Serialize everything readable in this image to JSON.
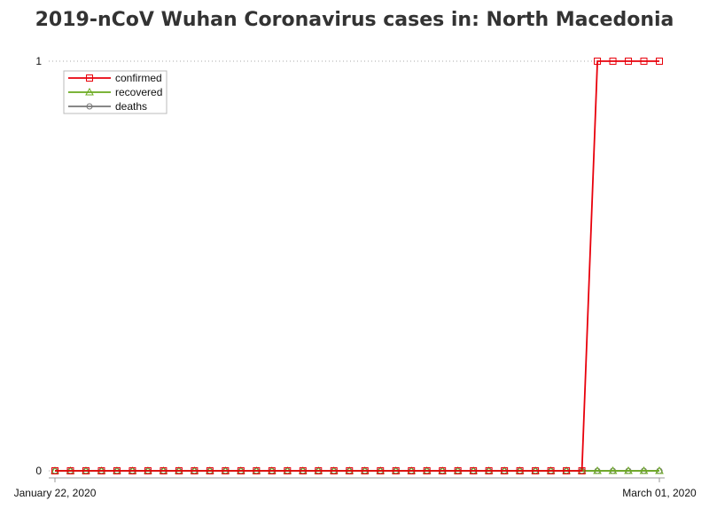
{
  "chart_data": {
    "type": "line",
    "title": "2019-nCoV Wuhan Coronavirus cases in: North Macedonia",
    "xlabel": "",
    "ylabel": "",
    "x_start": "2020-01-22",
    "x_end": "2020-03-01",
    "x_tick_labels": [
      "January 22, 2020",
      "March 01, 2020"
    ],
    "y_tick_labels": [
      "0",
      "1"
    ],
    "ylim": [
      0,
      1
    ],
    "grid": "horizontal dotted at 1",
    "legend_position": "top-left",
    "series": [
      {
        "name": "confirmed",
        "color": "#e8000b",
        "marker": "square",
        "values": [
          0,
          0,
          0,
          0,
          0,
          0,
          0,
          0,
          0,
          0,
          0,
          0,
          0,
          0,
          0,
          0,
          0,
          0,
          0,
          0,
          0,
          0,
          0,
          0,
          0,
          0,
          0,
          0,
          0,
          0,
          0,
          0,
          0,
          0,
          0,
          1,
          1,
          1,
          1,
          1
        ]
      },
      {
        "name": "recovered",
        "color": "#6aaa1e",
        "marker": "triangle",
        "values": [
          0,
          0,
          0,
          0,
          0,
          0,
          0,
          0,
          0,
          0,
          0,
          0,
          0,
          0,
          0,
          0,
          0,
          0,
          0,
          0,
          0,
          0,
          0,
          0,
          0,
          0,
          0,
          0,
          0,
          0,
          0,
          0,
          0,
          0,
          0,
          0,
          0,
          0,
          0,
          0
        ]
      },
      {
        "name": "deaths",
        "color": "#777777",
        "marker": "circle",
        "values": [
          0,
          0,
          0,
          0,
          0,
          0,
          0,
          0,
          0,
          0,
          0,
          0,
          0,
          0,
          0,
          0,
          0,
          0,
          0,
          0,
          0,
          0,
          0,
          0,
          0,
          0,
          0,
          0,
          0,
          0,
          0,
          0,
          0,
          0,
          0,
          0,
          0,
          0,
          0,
          0
        ]
      }
    ]
  }
}
